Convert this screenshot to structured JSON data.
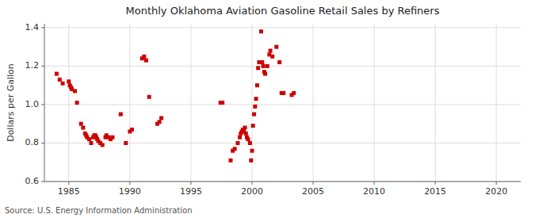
{
  "chart_data": {
    "type": "scatter",
    "title": "Monthly Oklahoma Aviation Gasoline Retail Sales by Refiners",
    "y_label": "Dollars per Gallon",
    "source": "Source: U.S. Energy Information Administration",
    "xlim": [
      1983.0,
      2022.0
    ],
    "ylim": [
      0.6,
      1.42
    ],
    "yticks": [
      0.6,
      0.8,
      {
        "value": 1.0,
        "label": "1.0"
      },
      1.2,
      1.4
    ],
    "xticks": [
      1985,
      1990,
      1995,
      2000,
      2005,
      2010,
      2015,
      2020
    ],
    "grid": true,
    "color": "#cc0000",
    "marker": "square",
    "x": [
      1984.0,
      1984.25,
      1984.5,
      1985.0,
      1985.08,
      1985.17,
      1985.25,
      1985.5,
      1985.67,
      1986.0,
      1986.17,
      1986.33,
      1986.42,
      1986.5,
      1986.67,
      1986.83,
      1987.0,
      1987.08,
      1987.17,
      1987.25,
      1987.33,
      1987.42,
      1987.58,
      1987.75,
      1988.0,
      1988.08,
      1988.25,
      1988.42,
      1988.58,
      1989.25,
      1989.67,
      1990.0,
      1990.17,
      1991.0,
      1991.17,
      1991.33,
      1991.58,
      1992.25,
      1992.42,
      1992.58,
      1997.42,
      1997.58,
      1998.25,
      1998.42,
      1998.58,
      1998.83,
      1999.0,
      1999.08,
      1999.17,
      1999.25,
      1999.33,
      1999.42,
      1999.5,
      1999.58,
      1999.67,
      1999.83,
      1999.92,
      2000.0,
      2000.08,
      2000.17,
      2000.25,
      2000.33,
      2000.42,
      2000.5,
      2000.58,
      2000.75,
      2000.83,
      2000.92,
      2001.0,
      2001.08,
      2001.25,
      2001.42,
      2001.5,
      2001.67,
      2002.0,
      2002.25,
      2002.42,
      2002.58,
      2003.25,
      2003.42
    ],
    "values": [
      1.16,
      1.13,
      1.11,
      1.12,
      1.1,
      1.09,
      1.08,
      1.07,
      1.01,
      0.9,
      0.88,
      0.85,
      0.84,
      0.83,
      0.82,
      0.8,
      0.83,
      0.84,
      0.84,
      0.83,
      0.82,
      0.81,
      0.8,
      0.79,
      0.83,
      0.84,
      0.83,
      0.82,
      0.83,
      0.95,
      0.8,
      0.86,
      0.87,
      1.24,
      1.25,
      1.23,
      1.04,
      0.9,
      0.91,
      0.93,
      1.01,
      1.01,
      0.71,
      0.76,
      0.77,
      0.8,
      0.83,
      0.85,
      0.86,
      0.87,
      0.86,
      0.88,
      0.85,
      0.83,
      0.82,
      0.8,
      0.71,
      0.76,
      0.89,
      0.95,
      0.99,
      1.03,
      1.1,
      1.19,
      1.22,
      1.38,
      1.22,
      1.2,
      1.17,
      1.16,
      1.2,
      1.26,
      1.28,
      1.25,
      1.3,
      1.22,
      1.06,
      1.06,
      1.05,
      1.06
    ]
  }
}
